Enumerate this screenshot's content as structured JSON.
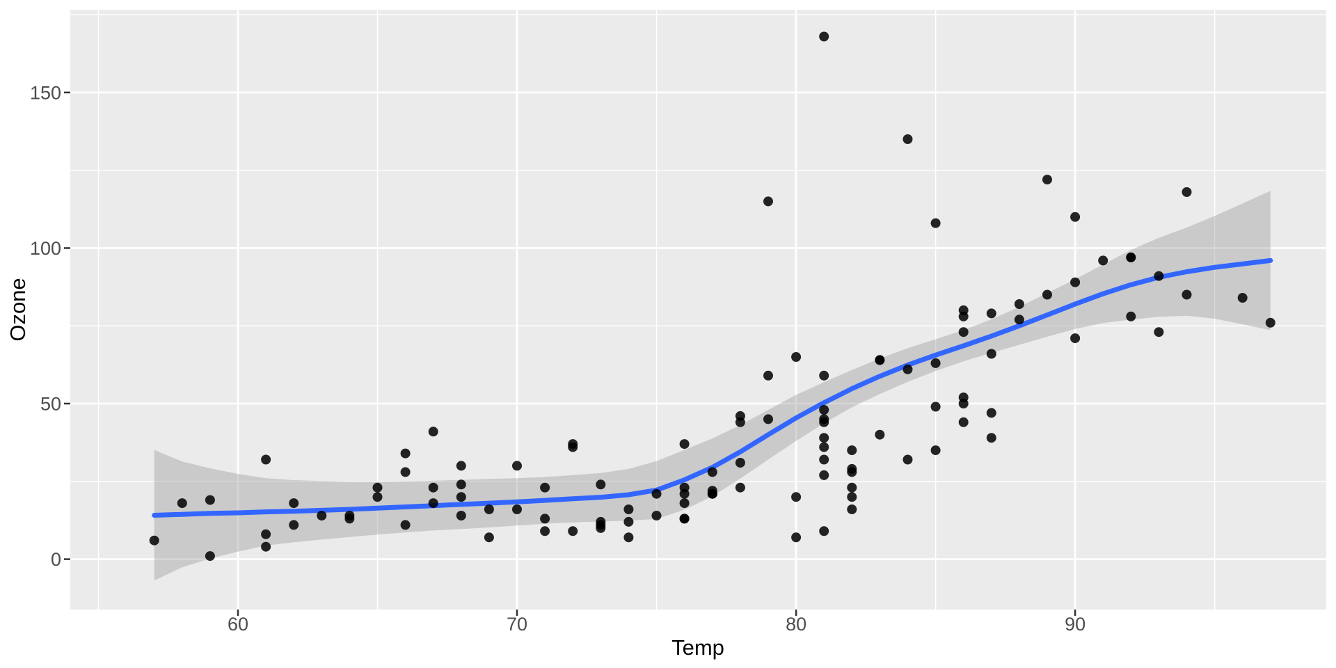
{
  "chart_data": {
    "type": "scatter",
    "title": "",
    "xlabel": "Temp",
    "ylabel": "Ozone",
    "x_ticks": [
      60,
      70,
      80,
      90
    ],
    "x_tick_labels": [
      "60",
      "70",
      "80",
      "90"
    ],
    "x_minor_ticks": [
      55,
      65,
      75,
      85,
      95
    ],
    "y_ticks": [
      0,
      50,
      100,
      150
    ],
    "y_tick_labels": [
      "0",
      "50",
      "100",
      "150"
    ],
    "y_minor_ticks": [
      25,
      75,
      125,
      175
    ],
    "xlim": [
      53.99,
      99.0
    ],
    "ylim": [
      -16.2,
      176.6
    ],
    "grid": "on",
    "legend": "none",
    "points": [
      [
        67,
        41
      ],
      [
        72,
        36
      ],
      [
        74,
        12
      ],
      [
        62,
        18
      ],
      [
        66,
        28
      ],
      [
        65,
        23
      ],
      [
        59,
        19
      ],
      [
        61,
        8
      ],
      [
        74,
        7
      ],
      [
        69,
        16
      ],
      [
        66,
        11
      ],
      [
        68,
        14
      ],
      [
        58,
        18
      ],
      [
        64,
        14
      ],
      [
        66,
        34
      ],
      [
        57,
        6
      ],
      [
        68,
        30
      ],
      [
        62,
        11
      ],
      [
        59,
        1
      ],
      [
        73,
        11
      ],
      [
        61,
        4
      ],
      [
        61,
        32
      ],
      [
        67,
        23
      ],
      [
        81,
        45
      ],
      [
        79,
        115
      ],
      [
        76,
        37
      ],
      [
        82,
        29
      ],
      [
        90,
        71
      ],
      [
        87,
        39
      ],
      [
        82,
        23
      ],
      [
        77,
        21
      ],
      [
        72,
        37
      ],
      [
        65,
        20
      ],
      [
        73,
        12
      ],
      [
        76,
        13
      ],
      [
        84,
        135
      ],
      [
        85,
        49
      ],
      [
        81,
        32
      ],
      [
        83,
        64
      ],
      [
        83,
        40
      ],
      [
        88,
        77
      ],
      [
        92,
        97
      ],
      [
        92,
        97
      ],
      [
        89,
        85
      ],
      [
        73,
        10
      ],
      [
        81,
        27
      ],
      [
        80,
        7
      ],
      [
        81,
        48
      ],
      [
        82,
        35
      ],
      [
        84,
        61
      ],
      [
        87,
        79
      ],
      [
        85,
        63
      ],
      [
        74,
        16
      ],
      [
        86,
        80
      ],
      [
        85,
        108
      ],
      [
        82,
        20
      ],
      [
        86,
        52
      ],
      [
        88,
        82
      ],
      [
        86,
        50
      ],
      [
        83,
        64
      ],
      [
        81,
        59
      ],
      [
        81,
        39
      ],
      [
        81,
        9
      ],
      [
        82,
        16
      ],
      [
        86,
        78
      ],
      [
        85,
        35
      ],
      [
        87,
        66
      ],
      [
        89,
        122
      ],
      [
        90,
        89
      ],
      [
        90,
        110
      ],
      [
        86,
        44
      ],
      [
        82,
        28
      ],
      [
        80,
        65
      ],
      [
        77,
        22
      ],
      [
        79,
        59
      ],
      [
        76,
        23
      ],
      [
        78,
        31
      ],
      [
        78,
        44
      ],
      [
        77,
        21
      ],
      [
        72,
        9
      ],
      [
        79,
        45
      ],
      [
        81,
        168
      ],
      [
        86,
        73
      ],
      [
        97,
        76
      ],
      [
        94,
        118
      ],
      [
        96,
        84
      ],
      [
        94,
        85
      ],
      [
        91,
        96
      ],
      [
        92,
        78
      ],
      [
        93,
        73
      ],
      [
        93,
        91
      ],
      [
        87,
        47
      ],
      [
        84,
        32
      ],
      [
        80,
        20
      ],
      [
        78,
        23
      ],
      [
        75,
        21
      ],
      [
        73,
        24
      ],
      [
        81,
        44
      ],
      [
        76,
        21
      ],
      [
        77,
        28
      ],
      [
        71,
        9
      ],
      [
        71,
        13
      ],
      [
        78,
        46
      ],
      [
        67,
        18
      ],
      [
        76,
        13
      ],
      [
        68,
        24
      ],
      [
        70,
        16
      ],
      [
        64,
        13
      ],
      [
        71,
        23
      ],
      [
        81,
        36
      ],
      [
        69,
        7
      ],
      [
        63,
        14
      ],
      [
        70,
        30
      ],
      [
        75,
        14
      ],
      [
        76,
        18
      ],
      [
        68,
        20
      ]
    ],
    "smooth_line": [
      [
        57,
        14.1
      ],
      [
        58,
        14.4
      ],
      [
        59,
        14.7
      ],
      [
        60,
        14.9
      ],
      [
        61,
        15.2
      ],
      [
        62,
        15.4
      ],
      [
        63,
        15.7
      ],
      [
        64,
        16.0
      ],
      [
        65,
        16.4
      ],
      [
        66,
        16.8
      ],
      [
        67,
        17.2
      ],
      [
        68,
        17.6
      ],
      [
        69,
        18.0
      ],
      [
        70,
        18.4
      ],
      [
        71,
        18.9
      ],
      [
        72,
        19.4
      ],
      [
        73,
        19.9
      ],
      [
        74,
        20.7
      ],
      [
        75,
        22.2
      ],
      [
        76,
        25.5
      ],
      [
        77,
        29.5
      ],
      [
        78,
        34.5
      ],
      [
        79,
        40.0
      ],
      [
        80,
        45.4
      ],
      [
        81,
        50.3
      ],
      [
        82,
        54.8
      ],
      [
        83,
        58.8
      ],
      [
        84,
        62.4
      ],
      [
        85,
        65.6
      ],
      [
        86,
        68.6
      ],
      [
        87,
        71.7
      ],
      [
        88,
        75.0
      ],
      [
        89,
        78.5
      ],
      [
        90,
        82.0
      ],
      [
        91,
        85.3
      ],
      [
        92,
        88.2
      ],
      [
        93,
        90.6
      ],
      [
        94,
        92.4
      ],
      [
        95,
        93.8
      ],
      [
        96,
        94.9
      ],
      [
        97,
        96.0
      ]
    ],
    "ribbon": [
      [
        57,
        -6.9,
        35.1
      ],
      [
        58,
        -2.6,
        31.4
      ],
      [
        59,
        0.2,
        29.2
      ],
      [
        60,
        2.4,
        27.4
      ],
      [
        61,
        4.4,
        26.0
      ],
      [
        62,
        5.4,
        25.4
      ],
      [
        63,
        6.3,
        25.1
      ],
      [
        64,
        7.1,
        24.9
      ],
      [
        65,
        7.9,
        24.9
      ],
      [
        66,
        8.6,
        25.0
      ],
      [
        67,
        9.2,
        25.2
      ],
      [
        68,
        9.7,
        25.5
      ],
      [
        69,
        10.2,
        25.8
      ],
      [
        70,
        10.8,
        26.0
      ],
      [
        71,
        11.4,
        26.4
      ],
      [
        72,
        11.8,
        27.0
      ],
      [
        73,
        12.1,
        27.7
      ],
      [
        74,
        12.4,
        29.0
      ],
      [
        75,
        12.9,
        31.5
      ],
      [
        76,
        15.9,
        35.1
      ],
      [
        77,
        20.2,
        38.8
      ],
      [
        78,
        25.9,
        43.1
      ],
      [
        79,
        32.0,
        48.0
      ],
      [
        80,
        38.0,
        52.8
      ],
      [
        81,
        43.7,
        56.9
      ],
      [
        82,
        48.8,
        60.8
      ],
      [
        83,
        53.1,
        64.5
      ],
      [
        84,
        57.0,
        67.8
      ],
      [
        85,
        60.5,
        70.7
      ],
      [
        86,
        63.6,
        73.6
      ],
      [
        87,
        66.3,
        77.1
      ],
      [
        88,
        68.9,
        81.1
      ],
      [
        89,
        71.5,
        85.5
      ],
      [
        90,
        74.0,
        90.0
      ],
      [
        91,
        75.9,
        94.7
      ],
      [
        92,
        77.0,
        99.4
      ],
      [
        93,
        77.9,
        103.3
      ],
      [
        94,
        78.2,
        106.6
      ],
      [
        95,
        77.3,
        110.3
      ],
      [
        96,
        75.5,
        114.3
      ],
      [
        97,
        73.6,
        118.4
      ]
    ],
    "colors": {
      "point": "#000000",
      "smooth_line": "#3366FF",
      "ribbon_fill": "#999999",
      "panel_background": "#EBEBEB",
      "gridline": "#FFFFFF",
      "tick_label": "#4D4D4D",
      "axis_title": "#000000",
      "tick_mark": "#333333"
    }
  }
}
